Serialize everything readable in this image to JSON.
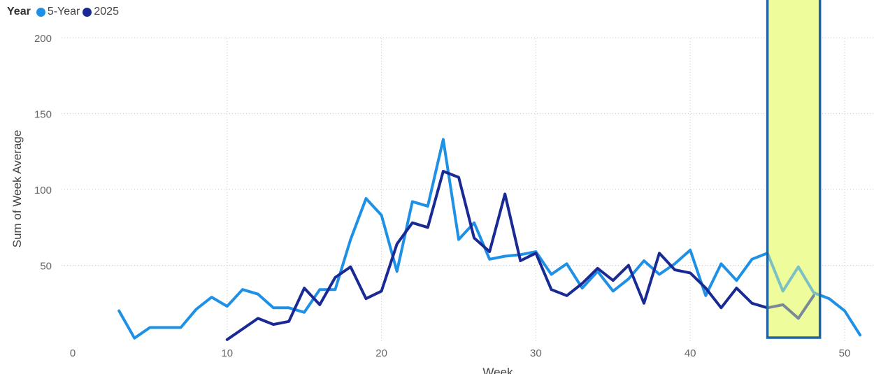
{
  "chart_data": {
    "type": "line",
    "legend": {
      "title": "Year",
      "placement": "top-left",
      "entries": [
        {
          "name": "5-Year",
          "color": "#1e90e6"
        },
        {
          "name": "2025",
          "color": "#1a2a94"
        }
      ]
    },
    "xlabel": "Week",
    "ylabel": "Sum of Week Average",
    "xlim": [
      0,
      52
    ],
    "ylim": [
      0,
      200
    ],
    "xticks": [
      0,
      10,
      20,
      30,
      40,
      50
    ],
    "yticks": [
      50,
      100,
      150,
      200
    ],
    "grid": true,
    "series": [
      {
        "name": "5-Year",
        "color": "#1e90e6",
        "x": [
          3,
          4,
          5,
          6,
          7,
          8,
          9,
          10,
          11,
          12,
          13,
          14,
          15,
          16,
          17,
          18,
          19,
          20,
          21,
          22,
          23,
          24,
          25,
          26,
          27,
          28,
          29,
          30,
          31,
          32,
          33,
          34,
          35,
          36,
          37,
          38,
          39,
          40,
          41,
          42,
          43,
          44,
          45,
          46,
          47,
          48,
          49,
          50,
          51
        ],
        "y": [
          20,
          2,
          9,
          9,
          9,
          21,
          29,
          23,
          34,
          31,
          22,
          22,
          19,
          34,
          34,
          67,
          94,
          83,
          46,
          92,
          89,
          133,
          67,
          78,
          54,
          56,
          57,
          59,
          44,
          51,
          35,
          46,
          33,
          41,
          53,
          44,
          51,
          60,
          30,
          51,
          40,
          54,
          58,
          33,
          49,
          32,
          28,
          20,
          4
        ]
      },
      {
        "name": "2025",
        "color": "#1a2a94",
        "x": [
          10,
          11,
          12,
          13,
          14,
          15,
          16,
          17,
          18,
          19,
          20,
          21,
          22,
          23,
          24,
          25,
          26,
          27,
          28,
          29,
          30,
          31,
          32,
          33,
          34,
          35,
          36,
          37,
          38,
          39,
          40,
          41,
          42,
          43,
          44,
          45,
          46,
          47,
          48
        ],
        "y": [
          1,
          8,
          15,
          11,
          13,
          35,
          24,
          42,
          49,
          28,
          33,
          64,
          78,
          75,
          112,
          108,
          68,
          59,
          97,
          53,
          58,
          34,
          30,
          38,
          48,
          40,
          50,
          25,
          58,
          47,
          45,
          35,
          22,
          35,
          25,
          22,
          24,
          15,
          30
        ]
      }
    ],
    "annotations": [
      {
        "type": "highlight-band",
        "x_start": 45,
        "x_end": 48.4,
        "fill": "#eefc9c",
        "border": "#1f63a4"
      }
    ]
  }
}
